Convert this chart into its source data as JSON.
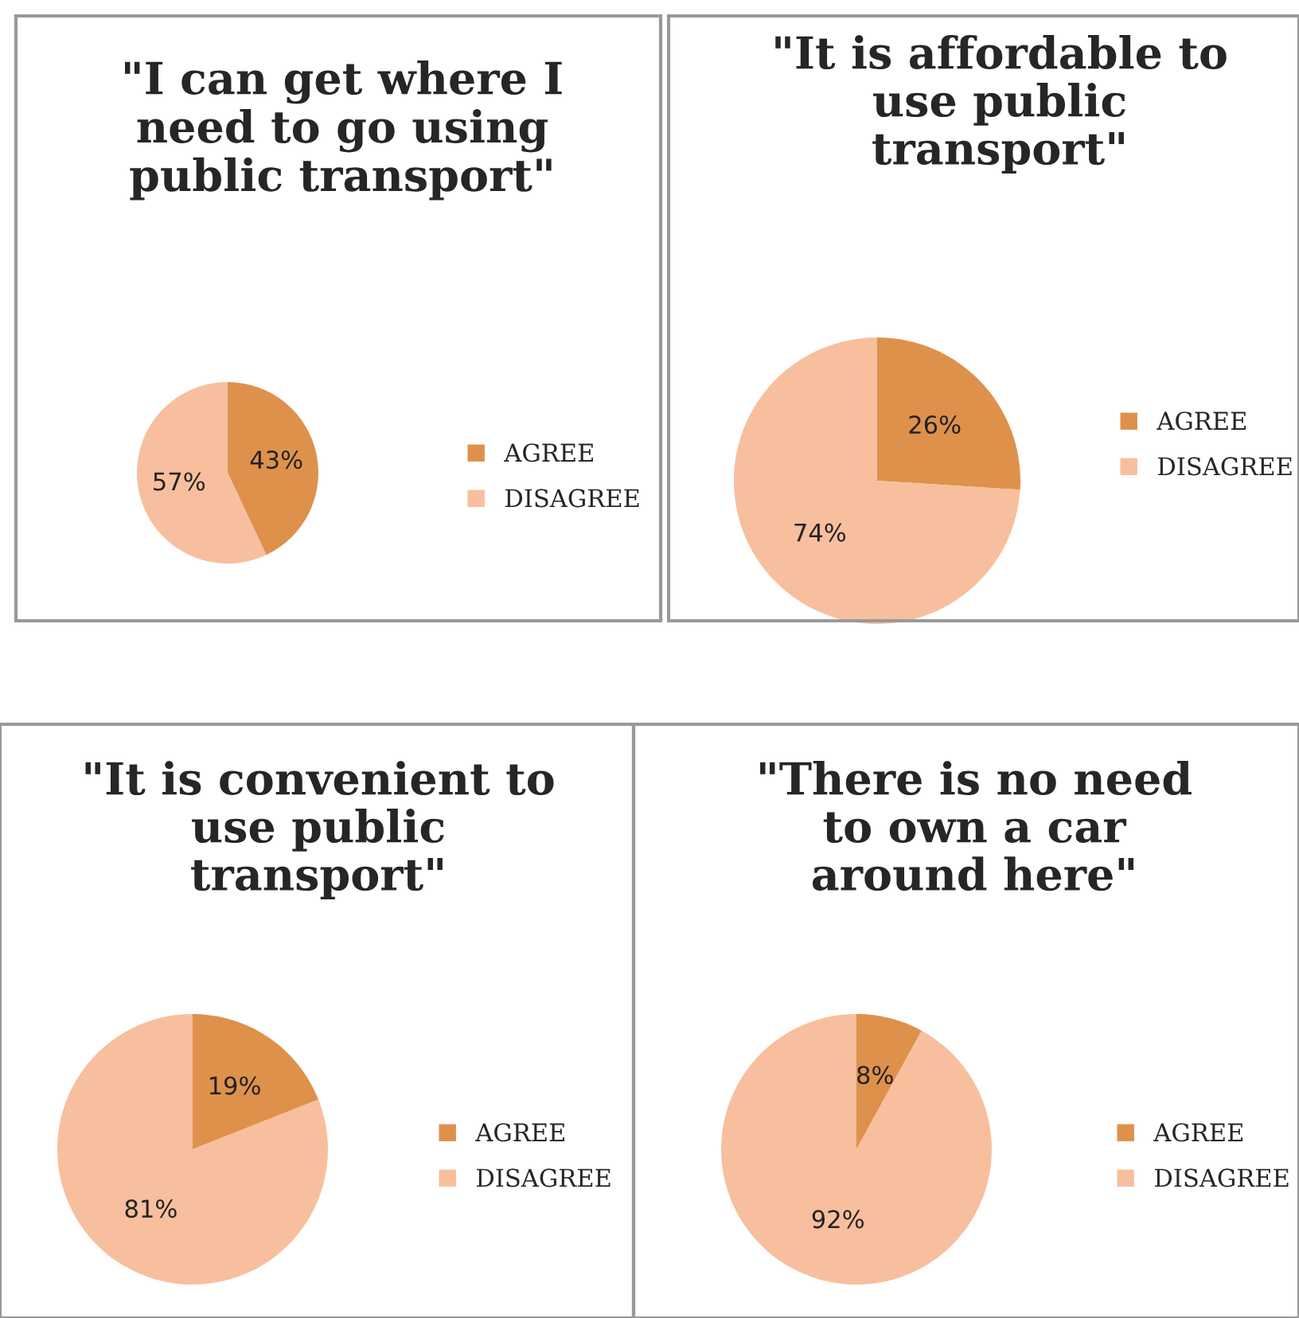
{
  "chart_data": [
    {
      "type": "pie",
      "title": "\"I can get where I\nneed to go using\npublic transport\"",
      "categories": [
        "AGREE",
        "DISAGREE"
      ],
      "values": [
        43,
        57
      ],
      "colors": [
        "#de914b",
        "#f7bf9d"
      ],
      "value_labels": [
        "43%",
        "57%"
      ],
      "legend": "right"
    },
    {
      "type": "pie",
      "title": "\"It is affordable to\nuse public\ntransport\"",
      "categories": [
        "AGREE",
        "DISAGREE"
      ],
      "values": [
        26,
        74
      ],
      "colors": [
        "#de914b",
        "#f7bf9d"
      ],
      "value_labels": [
        "26%",
        "74%"
      ],
      "legend": "right"
    },
    {
      "type": "pie",
      "title": "\"It is convenient to\nuse public\ntransport\"",
      "categories": [
        "AGREE",
        "DISAGREE"
      ],
      "values": [
        19,
        81
      ],
      "colors": [
        "#de914b",
        "#f7bf9d"
      ],
      "value_labels": [
        "19%",
        "81%"
      ],
      "legend": "right"
    },
    {
      "type": "pie",
      "title": "\"There is no need\nto own a car\naround here\"",
      "categories": [
        "AGREE",
        "DISAGREE"
      ],
      "values": [
        8,
        92
      ],
      "colors": [
        "#de914b",
        "#f7bf9d"
      ],
      "value_labels": [
        "8%",
        "92%"
      ],
      "legend": "right"
    }
  ]
}
